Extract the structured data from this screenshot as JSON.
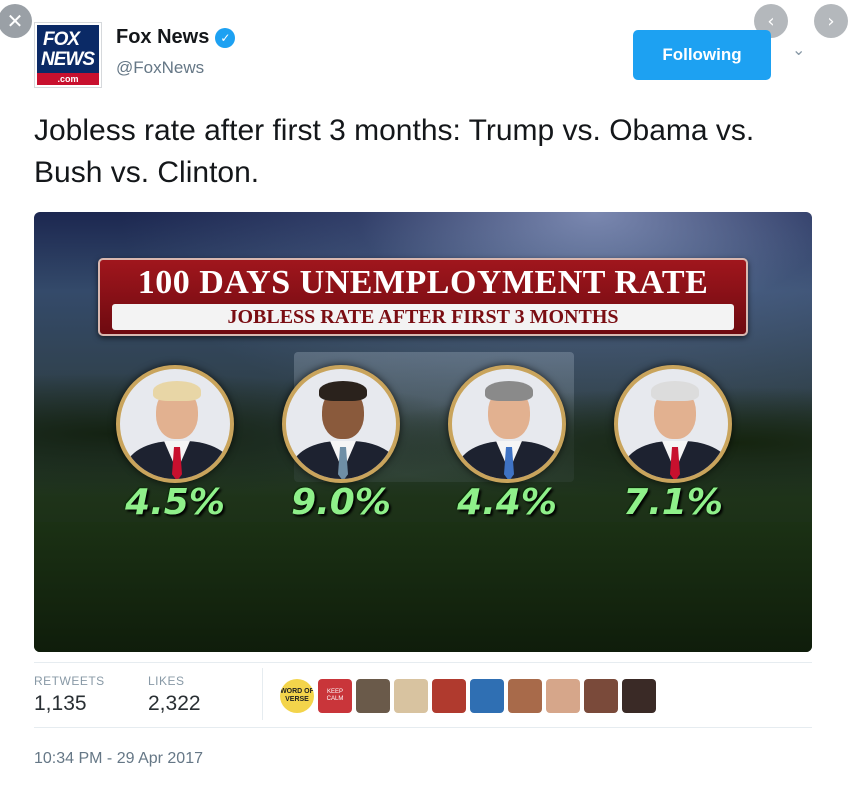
{
  "viewer": {
    "close_glyph": "✕",
    "prev_glyph": "‹",
    "next_glyph": "›"
  },
  "account": {
    "display_name": "Fox News",
    "handle": "@FoxNews",
    "verified_glyph": "✓",
    "logo": {
      "line1": "FOX",
      "line2": "NEWS",
      "line3": ".com"
    }
  },
  "follow_button": {
    "label": "Following"
  },
  "caret_glyph": "⌄",
  "tweet": {
    "text": "Jobless rate after first 3 months: Trump vs. Obama vs. Bush vs. Clinton."
  },
  "graphic": {
    "title": "100 DAYS UNEMPLOYMENT RATE",
    "subtitle": "JOBLESS RATE AFTER FIRST 3 MONTHS",
    "rates": [
      {
        "value": "4.5%",
        "hair": "#e8d6a6",
        "tie": "#c8102e"
      },
      {
        "value": "9.0%",
        "hair": "#2a221c",
        "tie": "#6f8fa6"
      },
      {
        "value": "4.4%",
        "hair": "#8a8a8a",
        "tie": "#3f73c4"
      },
      {
        "value": "7.1%",
        "hair": "#dcdcdc",
        "tie": "#c8102e"
      }
    ]
  },
  "stats": {
    "retweets_label": "RETWEETS",
    "retweets_value": "1,135",
    "likes_label": "LIKES",
    "likes_value": "2,322"
  },
  "likers": {
    "verse_text": "WORD OF VERSE",
    "calm_text": "KEEP CALM",
    "avatar_colors": [
      "#6a5a4a",
      "#d8c3a0",
      "#b03a2e",
      "#2f6fb3",
      "#a86a4a",
      "#d6a68a",
      "#7a4a3a",
      "#3a2a26"
    ]
  },
  "timestamp": "10:34 PM - 29 Apr 2017"
}
